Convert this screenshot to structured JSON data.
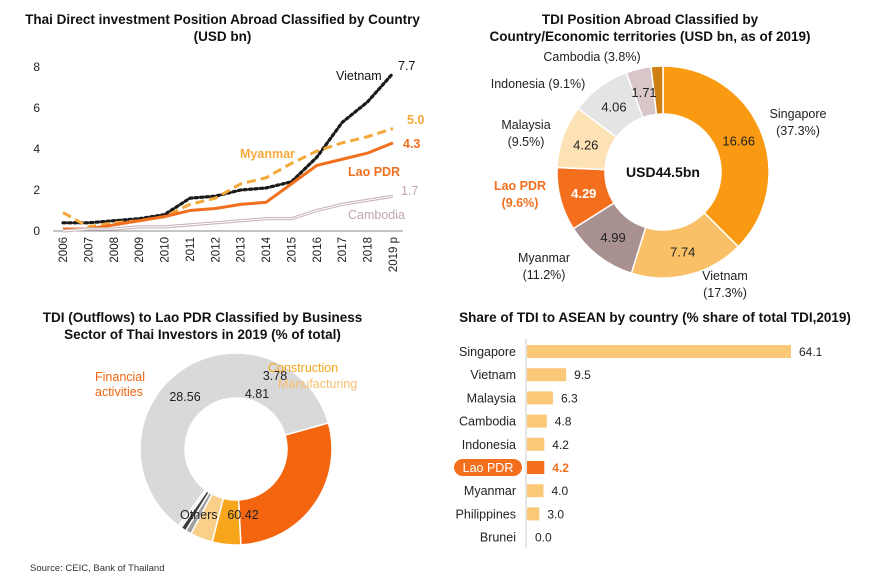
{
  "source_note": "Source: CEIC, Bank of Thailand",
  "chart_data": [
    {
      "type": "line",
      "title": "Thai Direct investment Position Abroad Classified by Country (USD bn)",
      "x": [
        "2006",
        "2007",
        "2008",
        "2009",
        "2010",
        "2011",
        "2012",
        "2013",
        "2014",
        "2015",
        "2016",
        "2017",
        "2018",
        "2019 p"
      ],
      "ylim": [
        0,
        8
      ],
      "yticks": [
        "0",
        "2",
        "4",
        "6",
        "8"
      ],
      "grid": false,
      "series": [
        {
          "name": "Vietnam",
          "end_label": "7.7",
          "color": "#1a1a1a",
          "style": "dotted",
          "values": [
            0.4,
            0.4,
            0.5,
            0.6,
            0.8,
            1.6,
            1.7,
            2.0,
            2.1,
            2.4,
            3.6,
            5.3,
            6.3,
            7.7
          ]
        },
        {
          "name": "Myanmar",
          "end_label": "5.0",
          "color": "#f3a83a",
          "style": "dashed",
          "values": [
            0.9,
            0.2,
            0.4,
            0.5,
            0.7,
            1.3,
            1.6,
            2.3,
            2.6,
            3.3,
            3.9,
            4.3,
            4.6,
            5.0
          ]
        },
        {
          "name": "Lao PDR",
          "end_label": "4.3",
          "color": "#f07020",
          "style": "solid",
          "values": [
            0.1,
            0.1,
            0.3,
            0.5,
            0.7,
            1.0,
            1.1,
            1.3,
            1.4,
            2.3,
            3.2,
            3.5,
            3.8,
            4.3
          ]
        },
        {
          "name": "Cambodia",
          "end_label": "1.7",
          "color": "#c9b6b8",
          "style": "double",
          "values": [
            0.0,
            0.1,
            0.1,
            0.2,
            0.2,
            0.3,
            0.4,
            0.5,
            0.6,
            0.6,
            1.0,
            1.3,
            1.5,
            1.7
          ]
        }
      ]
    },
    {
      "type": "pie",
      "title": "TDI Position Abroad Classified by Country/Economic territories (USD bn, as of 2019)",
      "center_label": "USD44.5bn",
      "slices": [
        {
          "name": "Singapore",
          "pct": "(37.3%)",
          "value": 16.66,
          "label": "16.66",
          "color": "#f99a12"
        },
        {
          "name": "Vietnam",
          "pct": "(17.3%)",
          "value": 7.74,
          "label": "7.74",
          "color": "#fac067"
        },
        {
          "name": "Myanmar",
          "pct": "(11.2%)",
          "value": 4.99,
          "label": "4.99",
          "color": "#a99192"
        },
        {
          "name": "Lao PDR",
          "pct": "(9.6%)",
          "value": 4.29,
          "label": "4.29",
          "color": "#f36f1e"
        },
        {
          "name": "Malaysia",
          "pct": "(9.5%)",
          "value": 4.26,
          "label": "4.26",
          "color": "#fde2b6"
        },
        {
          "name": "Indonesia",
          "pct": "(9.1%)",
          "value": 4.06,
          "label": "4.06",
          "color": "#e4e4e4"
        },
        {
          "name": "Cambodia",
          "pct": "(3.8%)",
          "value": 1.71,
          "label": "1.71",
          "color": "#d9c6c8"
        },
        {
          "name": "",
          "pct": "",
          "value": 0.8,
          "label": "",
          "color": "#d07f14"
        }
      ]
    },
    {
      "type": "pie",
      "title": "TDI (Outflows) to Lao PDR Classified by Business Sector of Thai Investors in 2019 (% of total)",
      "slices": [
        {
          "name": "Others",
          "value": 60.42,
          "label": "60.42",
          "color": "#d9d9d9"
        },
        {
          "name": "Financial activities",
          "value": 28.56,
          "label": "28.56",
          "color": "#f3650f"
        },
        {
          "name": "Construction",
          "value": 4.81,
          "label": "4.81",
          "color": "#f7a51b"
        },
        {
          "name": "Manufacturing",
          "value": 3.78,
          "label": "3.78",
          "color": "#f9cf8a"
        },
        {
          "name": "",
          "value": 1.0,
          "label": "",
          "color": "#a0a0a0"
        },
        {
          "name": "",
          "value": 0.9,
          "label": "",
          "color": "#3c3c3c"
        },
        {
          "name": "",
          "value": 0.53,
          "label": "",
          "color": "#ededed"
        }
      ]
    },
    {
      "type": "bar",
      "orientation": "horizontal",
      "title": "Share of TDI to ASEAN by country (% share of total TDI,2019)",
      "categories": [
        "Singapore",
        "Vietnam",
        "Malaysia",
        "Cambodia",
        "Indonesia",
        "Lao PDR",
        "Myanmar",
        "Philippines",
        "Brunei"
      ],
      "values": [
        64.1,
        9.5,
        6.3,
        4.8,
        4.2,
        4.2,
        4.0,
        3.0,
        0.0
      ],
      "value_labels": [
        "64.1",
        "9.5",
        "6.3",
        "4.8",
        "4.2",
        "4.2",
        "4.0",
        "3.0",
        "0.0"
      ],
      "highlight": "Lao PDR",
      "colors": {
        "bar": "#fbc878",
        "highlight": "#f36f1e"
      }
    }
  ]
}
